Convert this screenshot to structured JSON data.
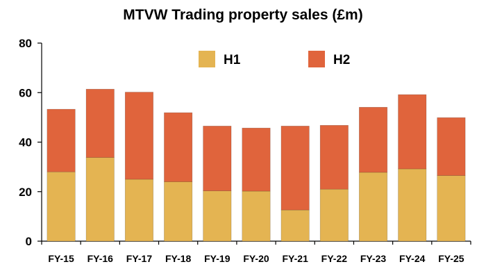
{
  "chart_data": {
    "type": "bar",
    "stacked": true,
    "title": "MTVW Trading property sales (£m)",
    "xlabel": "",
    "ylabel": "",
    "ylim": [
      0,
      80
    ],
    "yticks": [
      0,
      20,
      40,
      60,
      80
    ],
    "grid": false,
    "legend_position": "top-center",
    "categories": [
      "FY-15",
      "FY-16",
      "FY-17",
      "FY-18",
      "FY-19",
      "FY-20",
      "FY-21",
      "FY-22",
      "FY-23",
      "FY-24",
      "FY-25"
    ],
    "series": [
      {
        "name": "H1",
        "color": "#E4B452",
        "values": [
          28.0,
          33.8,
          25.0,
          24.0,
          20.3,
          20.2,
          12.6,
          21.0,
          27.8,
          29.2,
          26.5
        ]
      },
      {
        "name": "H2",
        "color": "#E0643C",
        "values": [
          25.3,
          27.6,
          35.2,
          27.9,
          26.2,
          25.5,
          33.9,
          25.8,
          26.3,
          30.0,
          23.4
        ]
      }
    ]
  }
}
